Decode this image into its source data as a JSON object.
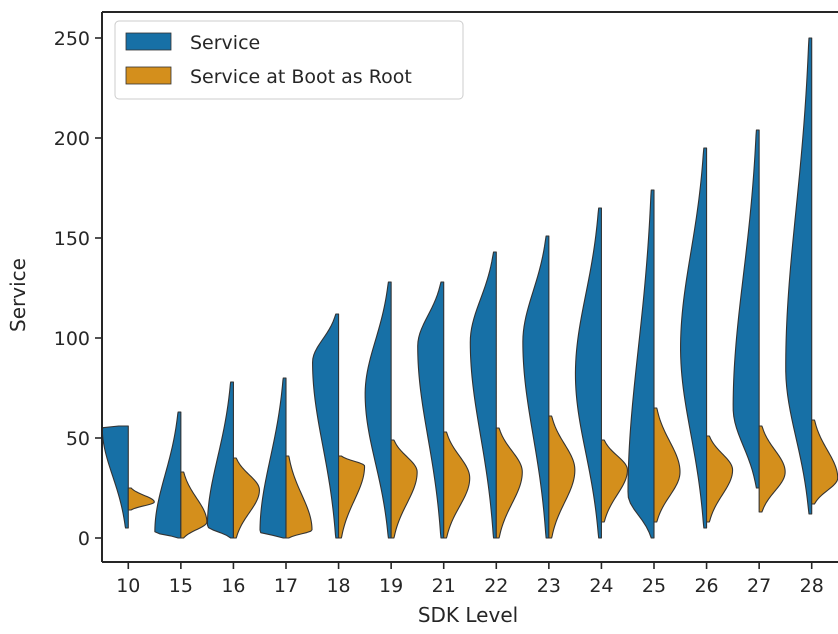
{
  "chart_data": {
    "type": "violin",
    "split": true,
    "cut": 0,
    "xlabel": "SDK Level",
    "ylabel": "Service",
    "ylim": [
      -12,
      263
    ],
    "yticks": [
      0,
      50,
      100,
      150,
      200,
      250
    ],
    "legend_position": "top-left",
    "categories": [
      "10",
      "15",
      "16",
      "17",
      "18",
      "19",
      "21",
      "22",
      "23",
      "24",
      "25",
      "26",
      "27",
      "28"
    ],
    "series": [
      {
        "name": "Service",
        "side": "left",
        "color": "#1770a6",
        "min": [
          5,
          0,
          0,
          0,
          0,
          0,
          0,
          0,
          0,
          0,
          0,
          5,
          25,
          12
        ],
        "max": [
          56,
          63,
          78,
          80,
          112,
          128,
          128,
          143,
          151,
          165,
          174,
          195,
          204,
          250
        ],
        "mode": [
          55,
          3,
          6,
          3,
          88,
          72,
          96,
          98,
          98,
          82,
          22,
          95,
          65,
          85
        ]
      },
      {
        "name": "Service at Boot as Root",
        "side": "right",
        "color": "#d48f1c",
        "min": [
          14,
          0,
          0,
          0,
          0,
          0,
          0,
          0,
          0,
          8,
          8,
          8,
          13,
          17
        ],
        "max": [
          25,
          33,
          40,
          41,
          41,
          49,
          53,
          55,
          61,
          49,
          65,
          51,
          56,
          59
        ],
        "mode": [
          18,
          8,
          24,
          4,
          36,
          33,
          30,
          33,
          34,
          34,
          33,
          34,
          33,
          30
        ]
      }
    ]
  }
}
